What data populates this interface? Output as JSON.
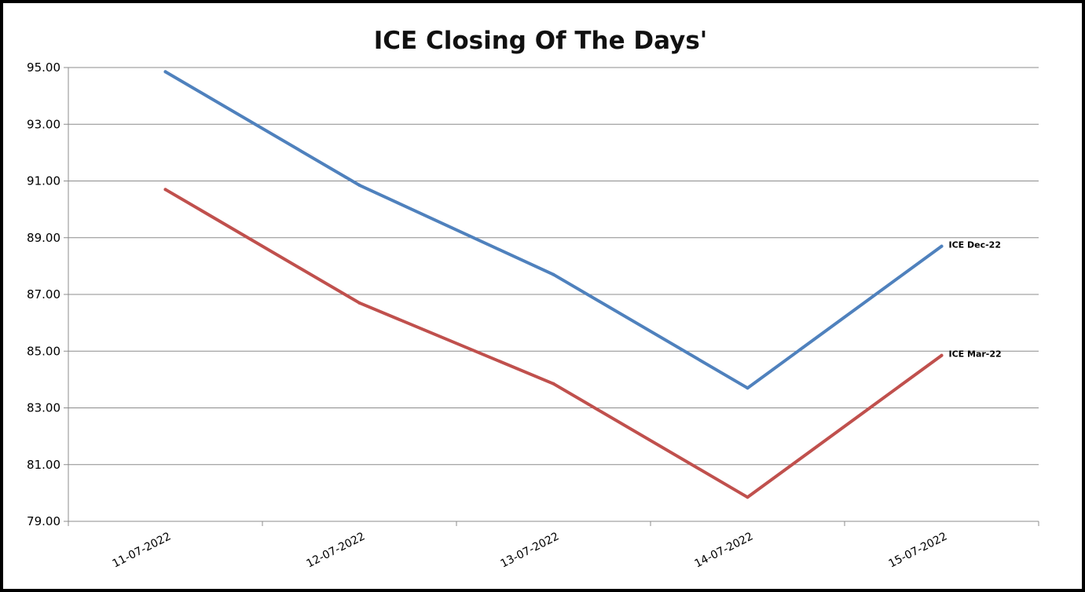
{
  "chart_data": {
    "type": "line",
    "title": "ICE Closing Of The Days'",
    "xlabel": "",
    "ylabel": "",
    "categories": [
      "11-07-2022",
      "12-07-2022",
      "13-07-2022",
      "14-07-2022",
      "15-07-2022"
    ],
    "series": [
      {
        "name": "ICE Dec-22",
        "color": "#4F81BD",
        "values": [
          94.85,
          90.85,
          87.7,
          83.7,
          88.7
        ]
      },
      {
        "name": "ICE Mar-22",
        "color": "#C0504D",
        "values": [
          90.7,
          86.7,
          83.85,
          79.85,
          84.85
        ]
      }
    ],
    "ylim": [
      79,
      95
    ],
    "yticks": [
      "95.00",
      "93.00",
      "91.00",
      "89.00",
      "87.00",
      "85.00",
      "83.00",
      "81.00",
      "79.00"
    ],
    "ytick_values": [
      95,
      93,
      91,
      89,
      87,
      85,
      83,
      81,
      79
    ],
    "grid": true,
    "legend": "none",
    "series_labels": "end-of-line"
  }
}
